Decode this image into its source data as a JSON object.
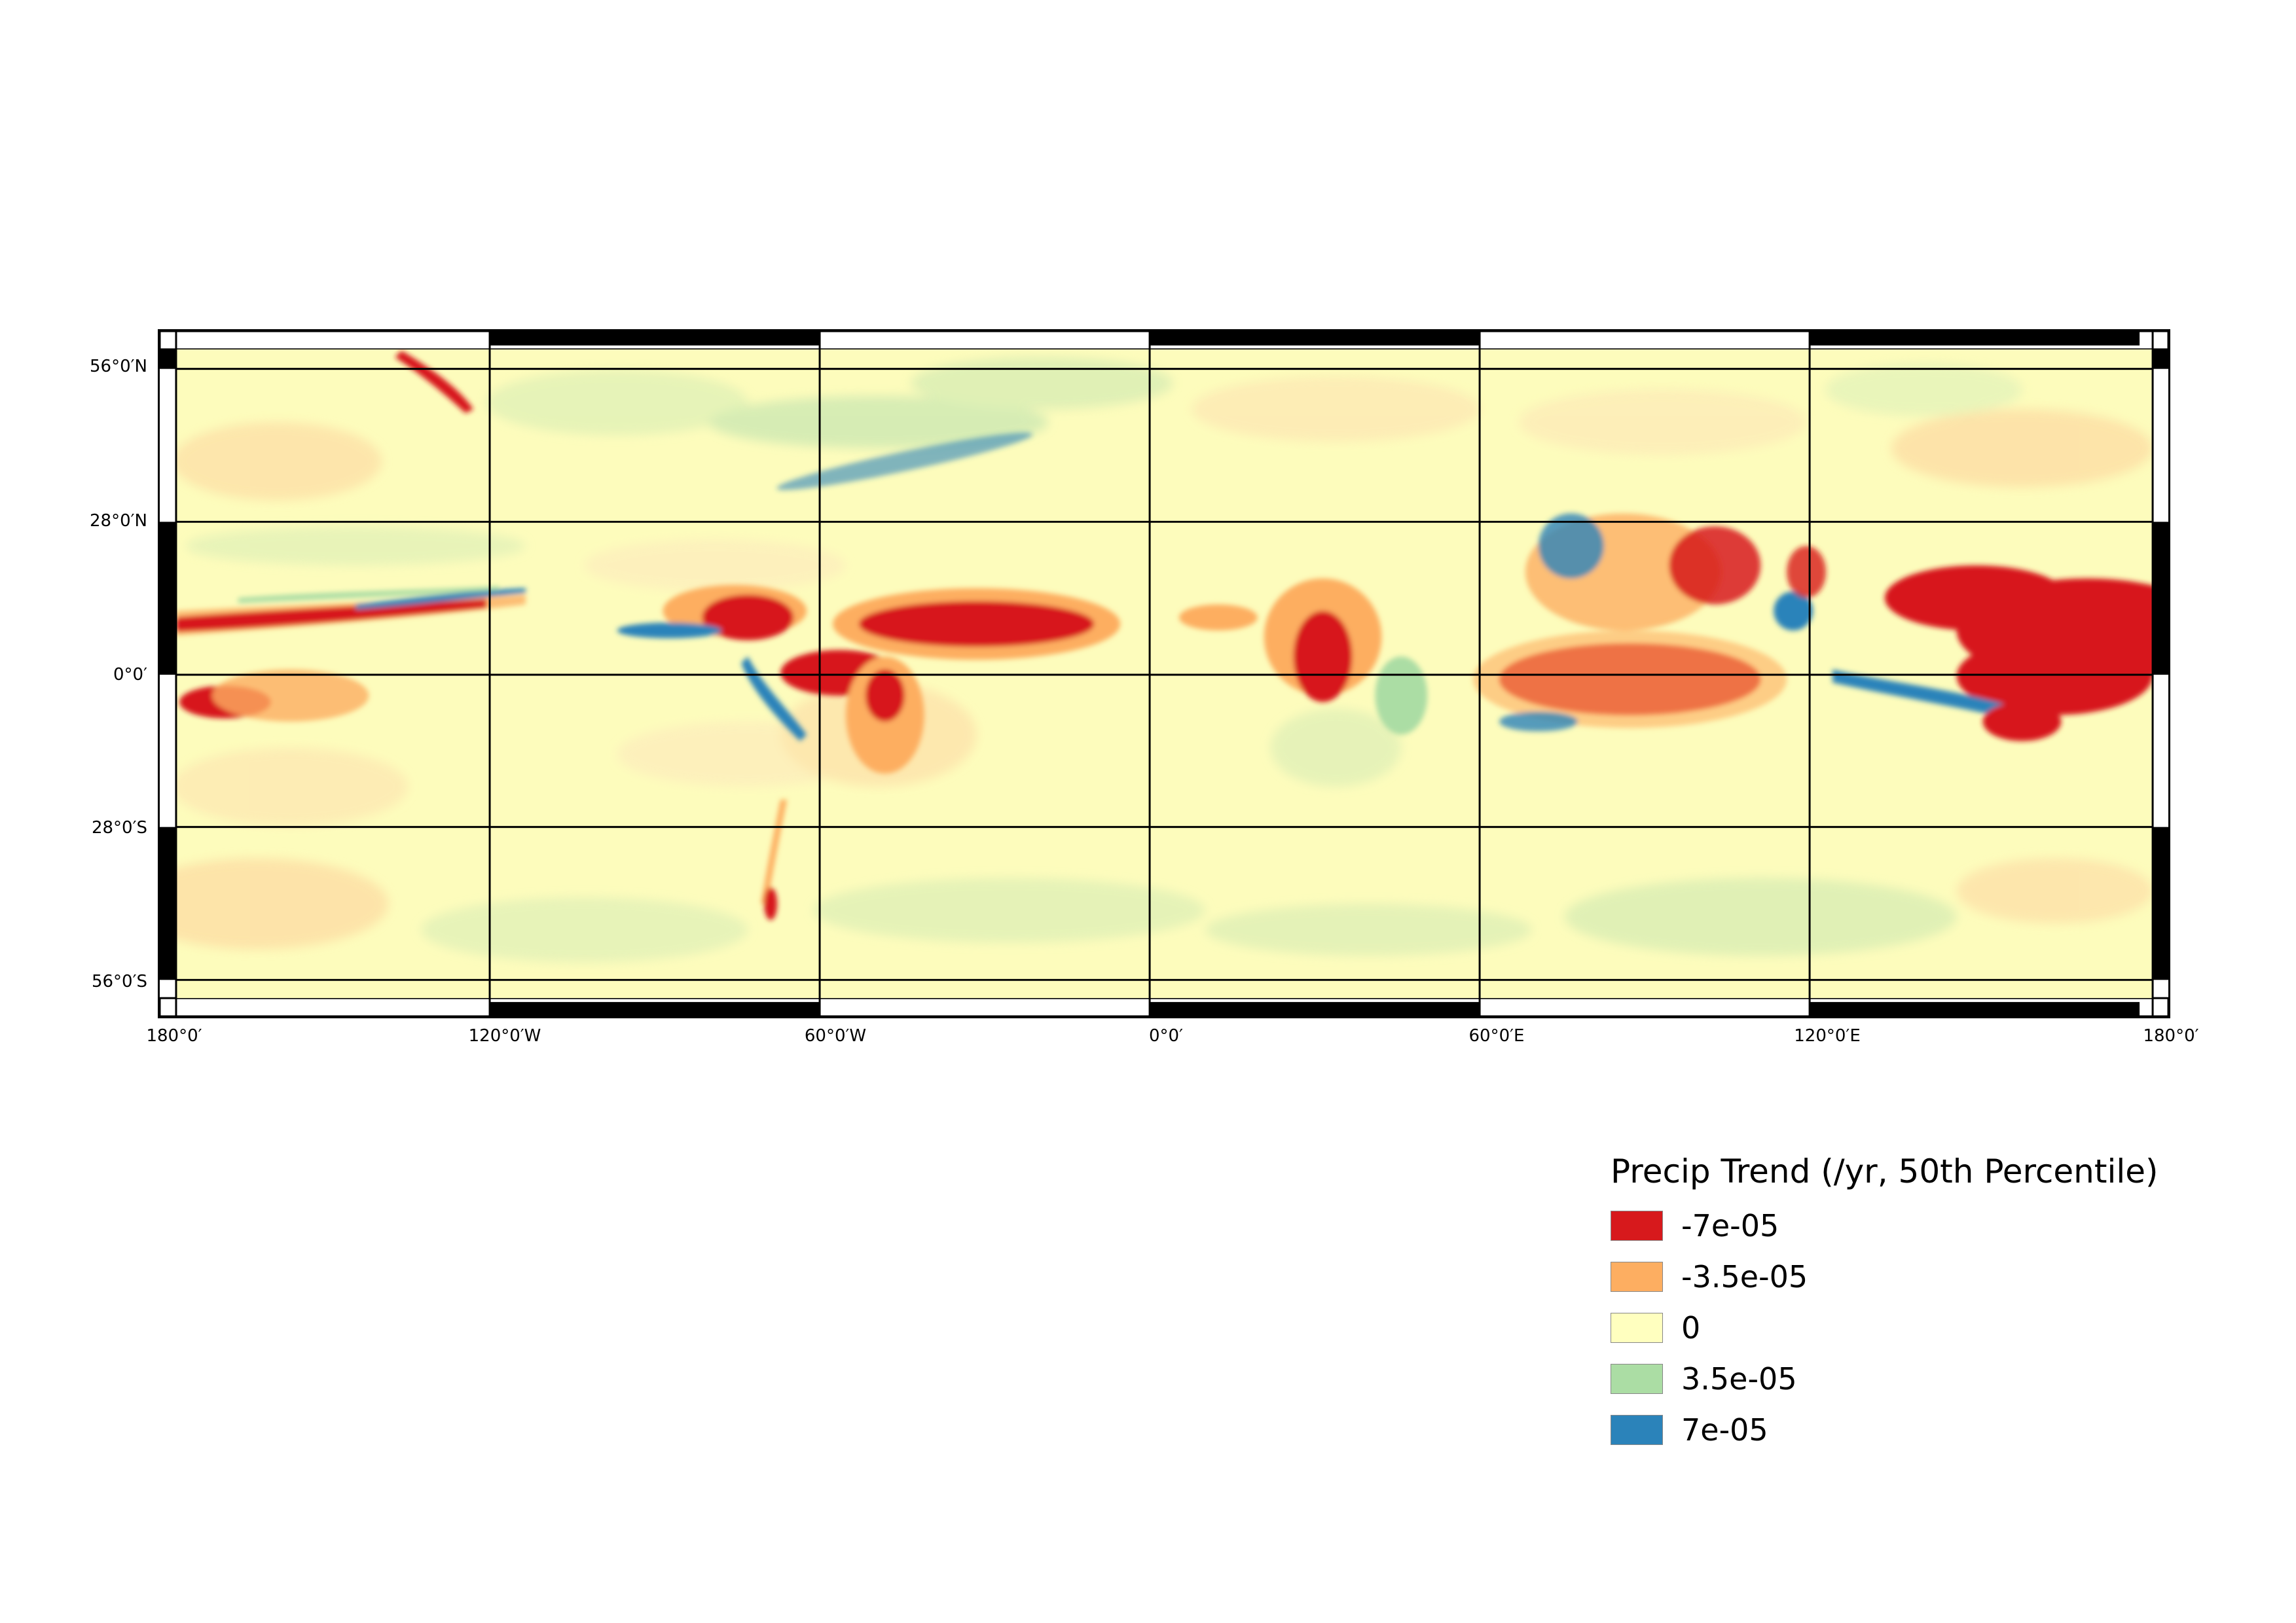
{
  "map": {
    "latitude_labels": [
      "56°0′N",
      "28°0′N",
      "0°0′",
      "28°0′S",
      "56°0′S"
    ],
    "longitude_labels": [
      "180°0′",
      "120°0′W",
      "60°0′W",
      "0°0′",
      "60°0′E",
      "120°0′E",
      "180°0′"
    ],
    "base_color": "#fdfcbc"
  },
  "legend": {
    "title": "Precip Trend (/yr, 50th Percentile)",
    "items": [
      {
        "label": "-7e-05",
        "color": "#d7191c",
        "icon": "red-swatch"
      },
      {
        "label": "-3.5e-05",
        "color": "#fdae61",
        "icon": "orange-swatch"
      },
      {
        "label": "0",
        "color": "#ffffbf",
        "icon": "yellow-swatch"
      },
      {
        "label": "3.5e-05",
        "color": "#abdda4",
        "icon": "green-swatch"
      },
      {
        "label": "7e-05",
        "color": "#2b83ba",
        "icon": "blue-swatch"
      }
    ]
  }
}
